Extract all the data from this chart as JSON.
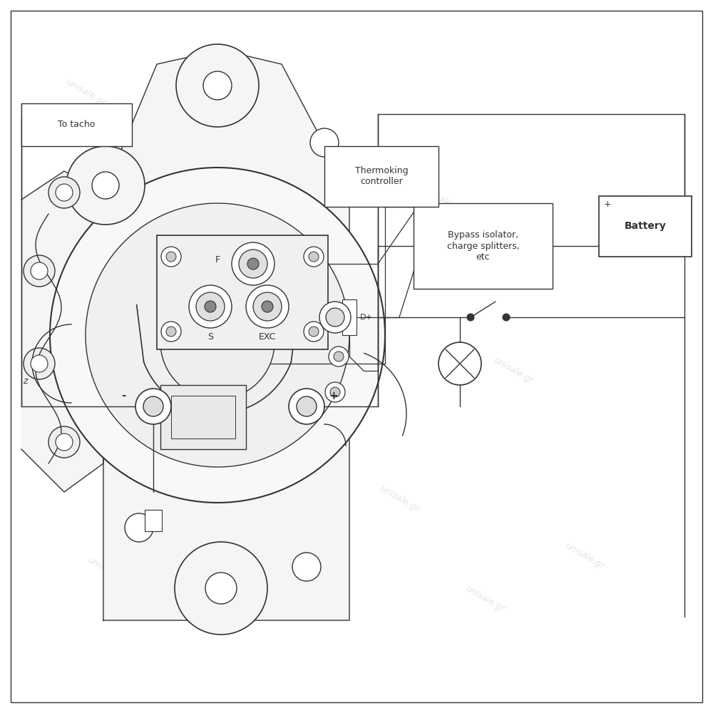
{
  "bg_color": "#ffffff",
  "line_color": "#333333",
  "watermark_text": "unisale.gr",
  "watermark_color": "#cccccc",
  "labels": {
    "to_tacho": "To tacho",
    "thermoking": "Thermoking\ncontroller",
    "bypass": "Bypass isolator,\ncharge splitters,\netc",
    "battery": "Battery",
    "S": "S",
    "EXC": "EXC",
    "F": "F",
    "D_plus": "D+",
    "minus": "-",
    "plus": "+"
  },
  "font_size_small": 8,
  "font_size_box": 9,
  "font_size_label": 10
}
